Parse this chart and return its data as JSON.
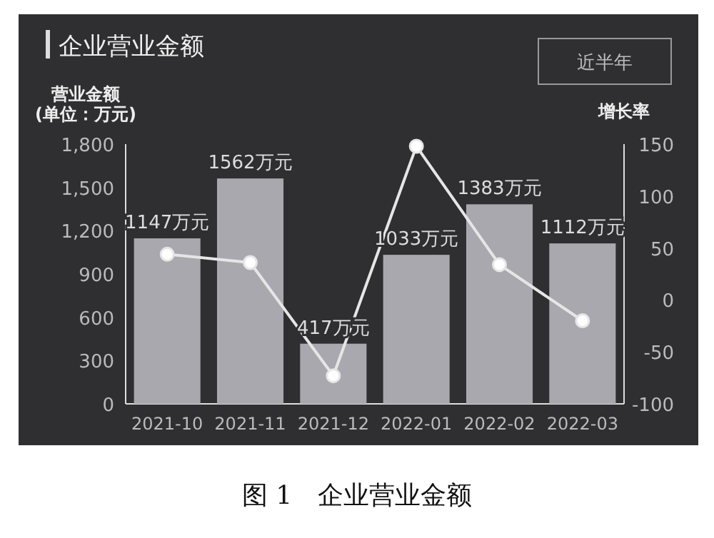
{
  "chart_data": {
    "type": "bar",
    "title": "企业营业金额",
    "categories": [
      "2021-10",
      "2021-11",
      "2021-12",
      "2022-01",
      "2022-02",
      "2022-03"
    ],
    "series": [
      {
        "color": "#a9a8ae",
        "values": [
          1147,
          1562,
          417,
          1033,
          1383,
          1112
        ],
        "value_labels": [
          "1147万元",
          "1562万元",
          "417万元",
          "1033万元",
          "1383万元",
          "1112万元"
        ]
      },
      {
        "type": "line",
        "axis": "y2",
        "color": "#e6e6e6",
        "values": [
          44,
          36,
          -73,
          148,
          34,
          -20
        ],
        "marker": "circle"
      }
    ],
    "ylabel": "营业金额\n(单位：万元)",
    "y2label": "增长率",
    "ylim": [
      0,
      1800
    ],
    "yticks": [
      {
        "value": 0,
        "label": "0"
      },
      {
        "value": 300,
        "label": "300"
      },
      {
        "value": 600,
        "label": "600"
      },
      {
        "value": 900,
        "label": "900"
      },
      {
        "value": 1200,
        "label": "1,200"
      },
      {
        "value": 1500,
        "label": "1,500"
      },
      {
        "value": 1800,
        "label": "1,800"
      }
    ],
    "y2lim": [
      -100,
      150
    ],
    "y2ticks": [
      -100,
      -50,
      0,
      50,
      100,
      150
    ],
    "grid": false,
    "annotations": [
      "近半年",
      "图 1　企业营业金额"
    ]
  }
}
